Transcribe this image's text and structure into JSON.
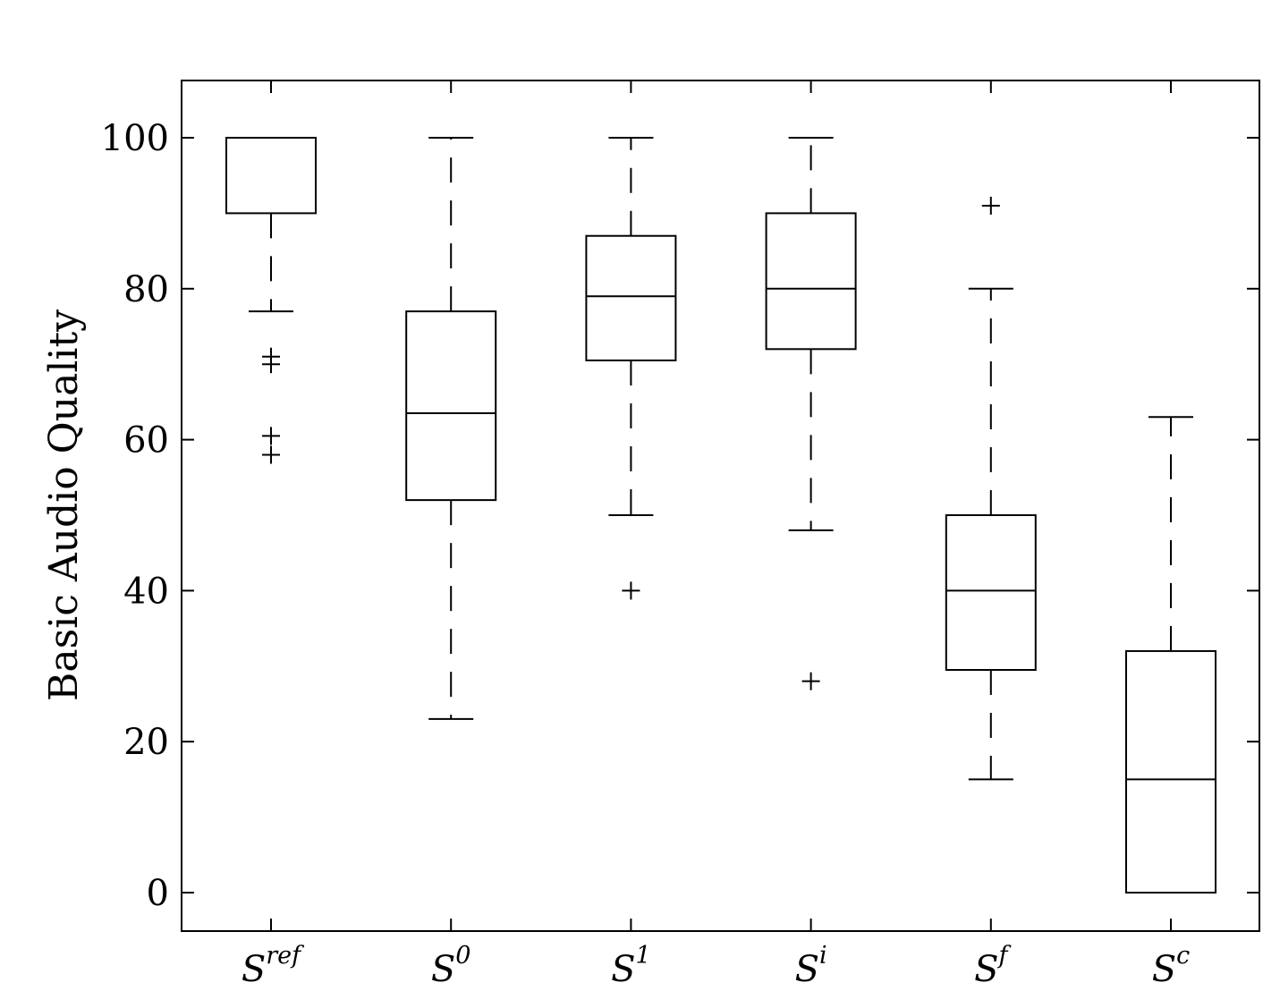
{
  "chart_data": {
    "type": "box",
    "ylabel": "Basic Audio Quality",
    "xlabel": "",
    "ylim": [
      -5,
      108
    ],
    "yticks": [
      "0",
      "20",
      "40",
      "60",
      "80",
      "100"
    ],
    "grid": false,
    "categories": [
      {
        "base": "S",
        "sup": "ref"
      },
      {
        "base": "S",
        "sup": "0"
      },
      {
        "base": "S",
        "sup": "1"
      },
      {
        "base": "S",
        "sup": "i"
      },
      {
        "base": "S",
        "sup": "f"
      },
      {
        "base": "S",
        "sup": "c"
      }
    ],
    "boxes": [
      {
        "whisker_low": 77,
        "q1": 90,
        "median": 100,
        "q3": 100,
        "whisker_high": 100,
        "outliers": [
          71,
          70,
          60.5,
          58
        ]
      },
      {
        "whisker_low": 23,
        "q1": 52,
        "median": 63.5,
        "q3": 77,
        "whisker_high": 100,
        "outliers": []
      },
      {
        "whisker_low": 50,
        "q1": 70.5,
        "median": 79,
        "q3": 87,
        "whisker_high": 100,
        "outliers": [
          40
        ]
      },
      {
        "whisker_low": 48,
        "q1": 72,
        "median": 80,
        "q3": 90,
        "whisker_high": 100,
        "outliers": [
          28
        ]
      },
      {
        "whisker_low": 15,
        "q1": 29.5,
        "median": 40,
        "q3": 50,
        "whisker_high": 80,
        "outliers": [
          91
        ]
      },
      {
        "whisker_low": 0,
        "q1": 0,
        "median": 15,
        "q3": 32,
        "whisker_high": 63,
        "outliers": []
      }
    ]
  }
}
